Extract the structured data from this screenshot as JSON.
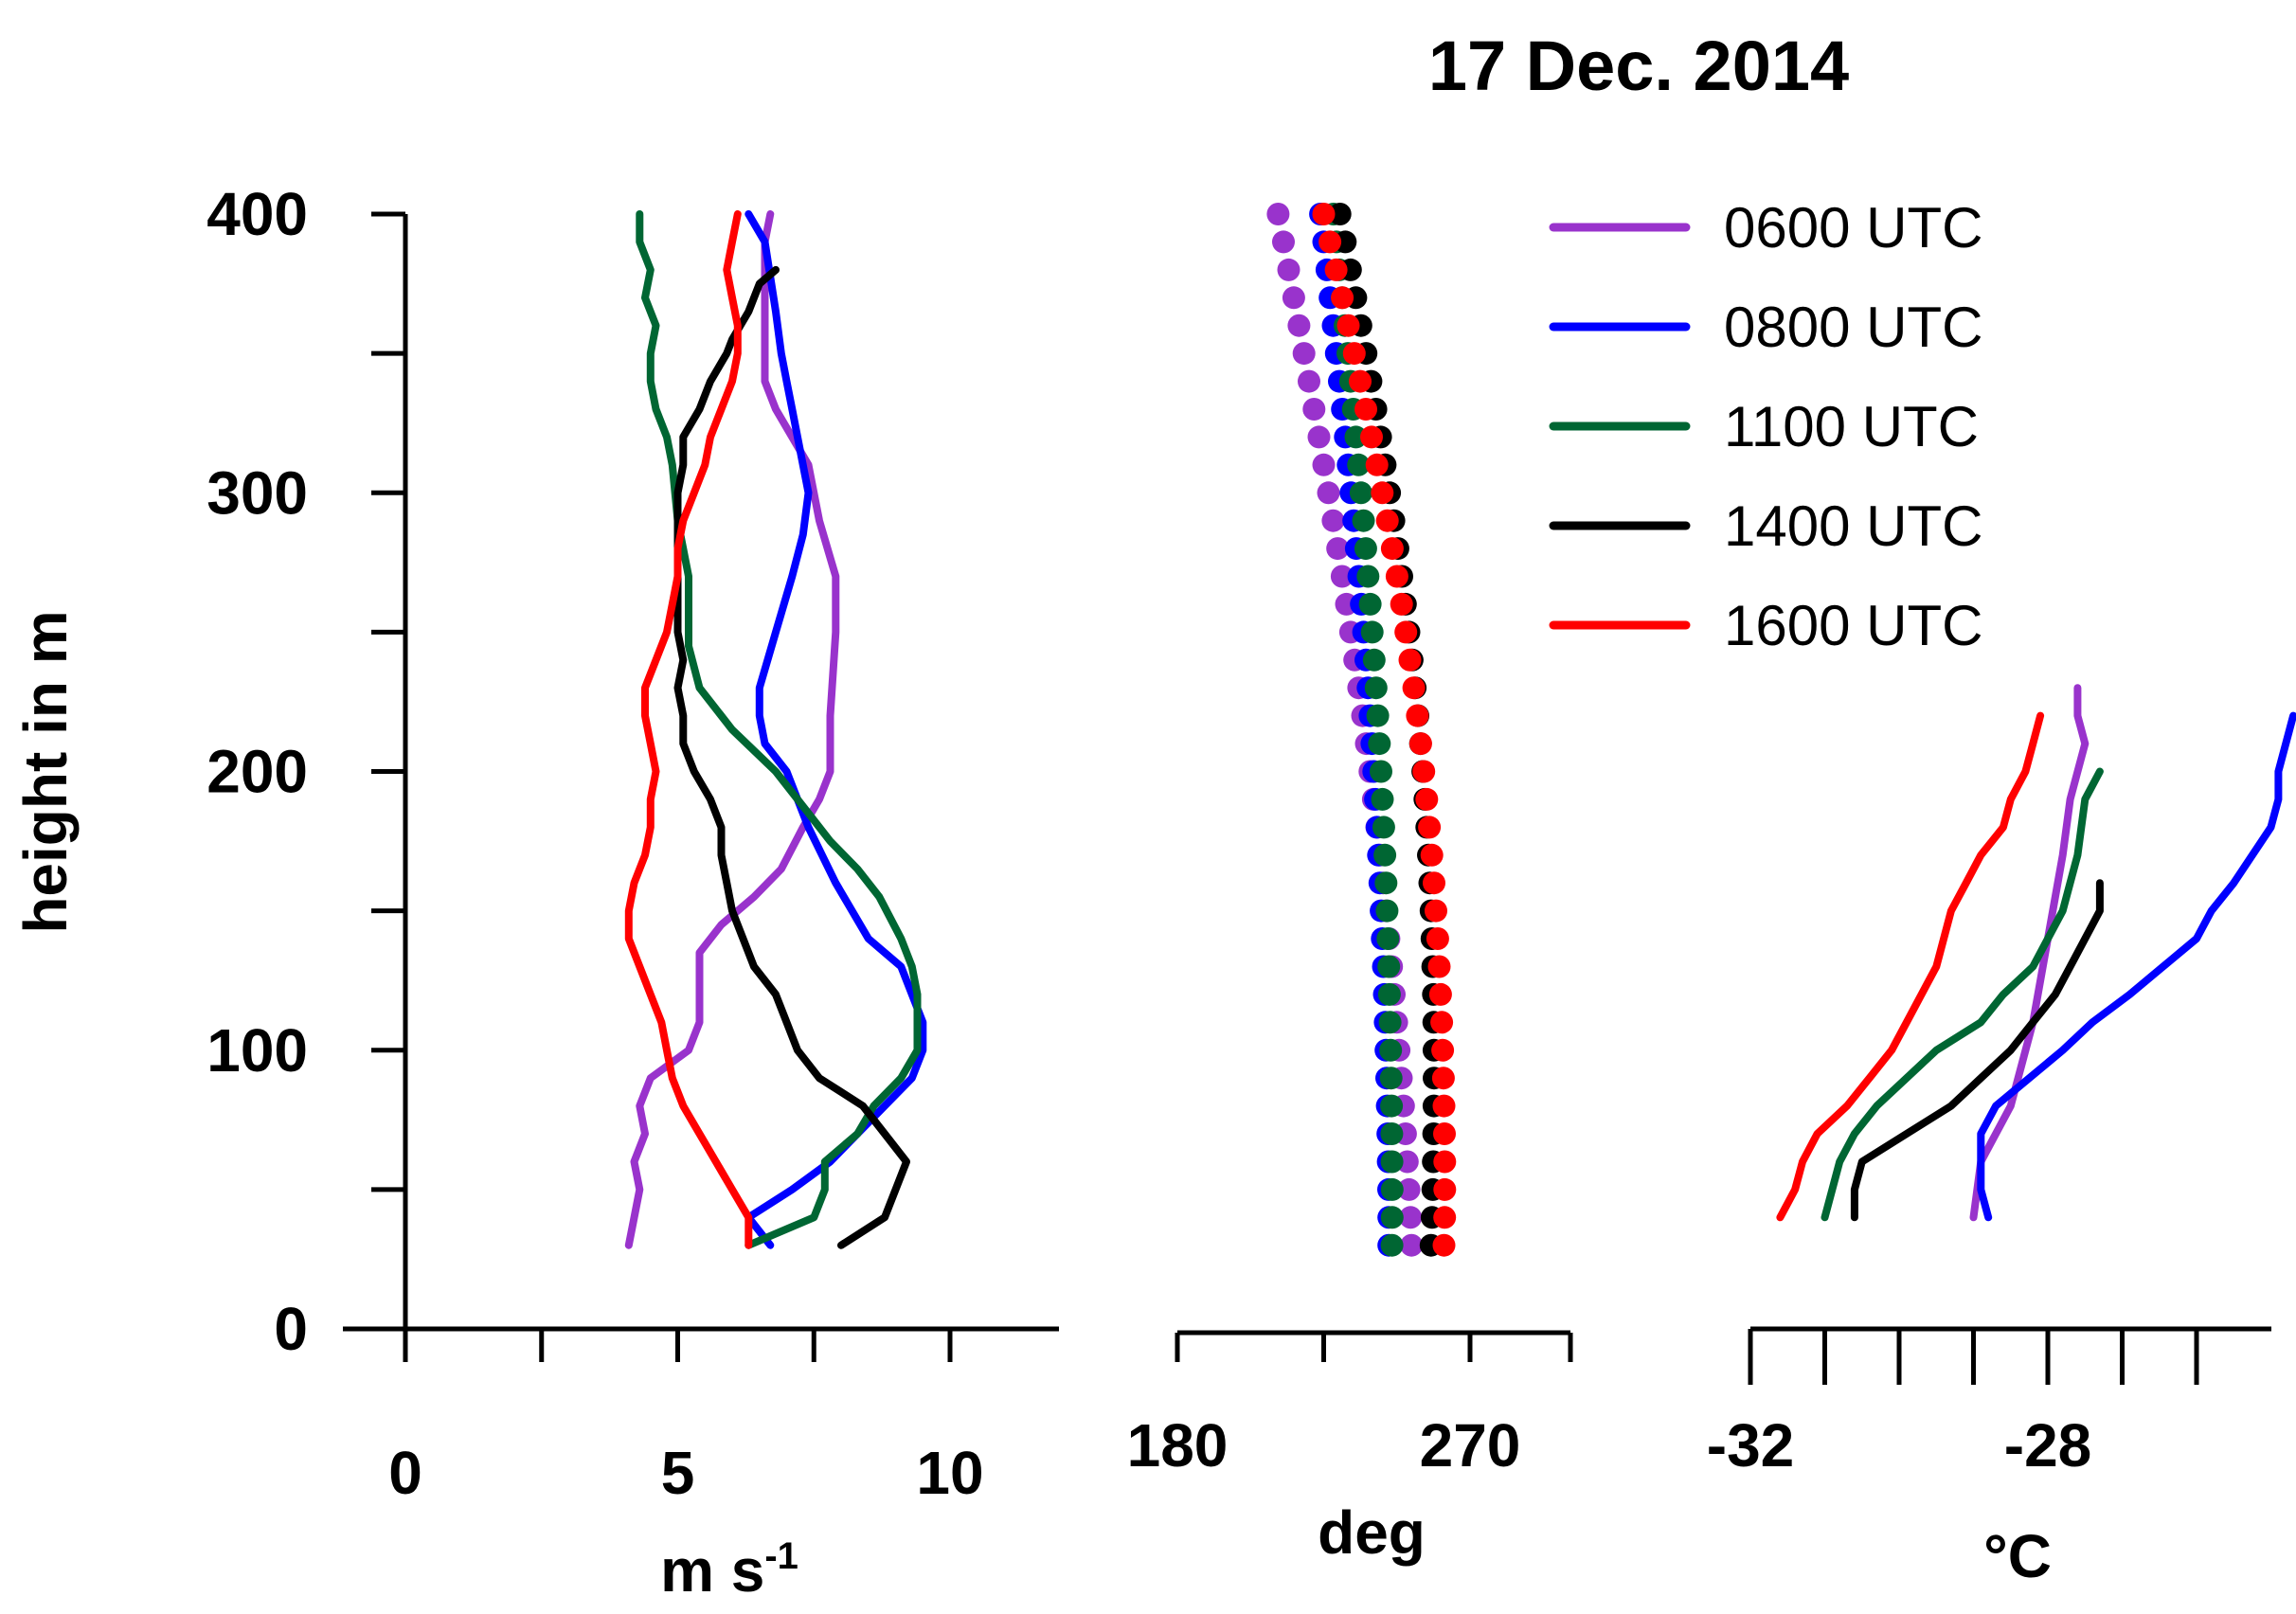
{
  "title": "17 Dec. 2014",
  "y_axis": {
    "label": "height in m",
    "range": [
      0,
      400
    ],
    "ticks": [
      0,
      50,
      100,
      150,
      200,
      250,
      300,
      350,
      400
    ],
    "tick_labels": [
      "0",
      "100",
      "200",
      "300",
      "400"
    ]
  },
  "legend": {
    "placement": "top-right",
    "entries": [
      {
        "name": "0600 UTC",
        "color": "#9933cc"
      },
      {
        "name": "0800 UTC",
        "color": "#0000ff"
      },
      {
        "name": "1100 UTC",
        "color": "#006633"
      },
      {
        "name": "1400 UTC",
        "color": "#000000"
      },
      {
        "name": "1600 UTC",
        "color": "#ff0000"
      }
    ]
  },
  "chart_data": [
    {
      "type": "line",
      "name": "wind speed",
      "xlabel_main": "m s",
      "xlabel_sup": "-1",
      "ylabel": "height in m",
      "xlim": [
        0,
        12
      ],
      "ylim": [
        0,
        400
      ],
      "x_ticks": [
        0,
        2.5,
        5,
        7.5,
        10
      ],
      "x_tick_labels": [
        "0",
        "5",
        "10"
      ],
      "series": [
        {
          "name": "0600 UTC",
          "color": "#9933cc",
          "points": [
            [
              4.1,
              30
            ],
            [
              4.3,
              50
            ],
            [
              4.2,
              60
            ],
            [
              4.4,
              70
            ],
            [
              4.3,
              80
            ],
            [
              4.5,
              90
            ],
            [
              5.2,
              100
            ],
            [
              5.4,
              110
            ],
            [
              5.4,
              120
            ],
            [
              5.4,
              135
            ],
            [
              5.8,
              145
            ],
            [
              6.4,
              155
            ],
            [
              6.9,
              165
            ],
            [
              7.3,
              180
            ],
            [
              7.6,
              190
            ],
            [
              7.8,
              200
            ],
            [
              7.8,
              220
            ],
            [
              7.9,
              250
            ],
            [
              7.9,
              270
            ],
            [
              7.6,
              290
            ],
            [
              7.4,
              310
            ],
            [
              6.8,
              330
            ],
            [
              6.6,
              340
            ],
            [
              6.6,
              370
            ],
            [
              6.6,
              390
            ],
            [
              6.7,
              400
            ]
          ]
        },
        {
          "name": "0800 UTC",
          "color": "#0000ff",
          "points": [
            [
              6.7,
              30
            ],
            [
              6.3,
              40
            ],
            [
              7.1,
              50
            ],
            [
              7.8,
              60
            ],
            [
              8.3,
              70
            ],
            [
              8.8,
              80
            ],
            [
              9.3,
              90
            ],
            [
              9.5,
              100
            ],
            [
              9.5,
              110
            ],
            [
              9.1,
              130
            ],
            [
              8.5,
              140
            ],
            [
              7.9,
              160
            ],
            [
              7.4,
              180
            ],
            [
              7.0,
              200
            ],
            [
              6.6,
              210
            ],
            [
              6.5,
              220
            ],
            [
              6.5,
              230
            ],
            [
              6.8,
              250
            ],
            [
              7.1,
              270
            ],
            [
              7.3,
              285
            ],
            [
              7.4,
              300
            ],
            [
              7.2,
              320
            ],
            [
              7.1,
              330
            ],
            [
              7.0,
              340
            ],
            [
              6.9,
              350
            ],
            [
              6.8,
              365
            ],
            [
              6.6,
              390
            ],
            [
              6.3,
              400
            ]
          ]
        },
        {
          "name": "1100 UTC",
          "color": "#006633",
          "points": [
            [
              6.3,
              30
            ],
            [
              7.5,
              40
            ],
            [
              7.7,
              50
            ],
            [
              7.7,
              60
            ],
            [
              8.3,
              70
            ],
            [
              8.6,
              80
            ],
            [
              9.1,
              90
            ],
            [
              9.4,
              100
            ],
            [
              9.4,
              120
            ],
            [
              9.3,
              130
            ],
            [
              9.1,
              140
            ],
            [
              8.7,
              155
            ],
            [
              8.3,
              165
            ],
            [
              7.8,
              175
            ],
            [
              7.4,
              185
            ],
            [
              6.8,
              200
            ],
            [
              6.0,
              215
            ],
            [
              5.4,
              230
            ],
            [
              5.2,
              245
            ],
            [
              5.2,
              270
            ],
            [
              5.0,
              290
            ],
            [
              4.9,
              310
            ],
            [
              4.8,
              320
            ],
            [
              4.6,
              330
            ],
            [
              4.5,
              340
            ],
            [
              4.5,
              350
            ],
            [
              4.6,
              360
            ],
            [
              4.4,
              370
            ],
            [
              4.5,
              380
            ],
            [
              4.3,
              390
            ],
            [
              4.3,
              400
            ]
          ]
        },
        {
          "name": "1400 UTC",
          "color": "#000000",
          "points": [
            [
              8.0,
              30
            ],
            [
              8.8,
              40
            ],
            [
              9.0,
              50
            ],
            [
              9.2,
              60
            ],
            [
              8.8,
              70
            ],
            [
              8.4,
              80
            ],
            [
              7.6,
              90
            ],
            [
              7.2,
              100
            ],
            [
              7.0,
              110
            ],
            [
              6.8,
              120
            ],
            [
              6.4,
              130
            ],
            [
              6.2,
              140
            ],
            [
              6.0,
              150
            ],
            [
              5.9,
              160
            ],
            [
              5.8,
              170
            ],
            [
              5.8,
              180
            ],
            [
              5.6,
              190
            ],
            [
              5.3,
              200
            ],
            [
              5.1,
              210
            ],
            [
              5.1,
              220
            ],
            [
              5.0,
              230
            ],
            [
              5.1,
              240
            ],
            [
              5.0,
              250
            ],
            [
              5.0,
              270
            ],
            [
              5.0,
              290
            ],
            [
              5.0,
              300
            ],
            [
              5.1,
              310
            ],
            [
              5.1,
              320
            ],
            [
              5.4,
              330
            ],
            [
              5.6,
              340
            ],
            [
              5.9,
              350
            ],
            [
              6.0,
              355
            ],
            [
              6.3,
              365
            ],
            [
              6.5,
              375
            ],
            [
              6.8,
              380
            ]
          ]
        },
        {
          "name": "1600 UTC",
          "color": "#ff0000",
          "points": [
            [
              6.3,
              30
            ],
            [
              6.3,
              40
            ],
            [
              6.0,
              50
            ],
            [
              5.7,
              60
            ],
            [
              5.4,
              70
            ],
            [
              5.1,
              80
            ],
            [
              4.9,
              90
            ],
            [
              4.8,
              100
            ],
            [
              4.7,
              110
            ],
            [
              4.5,
              120
            ],
            [
              4.3,
              130
            ],
            [
              4.1,
              140
            ],
            [
              4.1,
              150
            ],
            [
              4.2,
              160
            ],
            [
              4.4,
              170
            ],
            [
              4.5,
              180
            ],
            [
              4.5,
              190
            ],
            [
              4.6,
              200
            ],
            [
              4.5,
              210
            ],
            [
              4.4,
              220
            ],
            [
              4.4,
              230
            ],
            [
              4.6,
              240
            ],
            [
              4.8,
              250
            ],
            [
              4.9,
              260
            ],
            [
              5.0,
              270
            ],
            [
              5.0,
              280
            ],
            [
              5.1,
              290
            ],
            [
              5.3,
              300
            ],
            [
              5.5,
              310
            ],
            [
              5.6,
              320
            ],
            [
              5.8,
              330
            ],
            [
              6.0,
              340
            ],
            [
              6.1,
              350
            ],
            [
              6.1,
              360
            ],
            [
              6.0,
              370
            ],
            [
              5.9,
              380
            ],
            [
              6.0,
              390
            ],
            [
              6.1,
              400
            ]
          ]
        }
      ]
    },
    {
      "type": "scatter",
      "name": "wind direction",
      "xlabel": "deg",
      "xlim": [
        180,
        300
      ],
      "ylim": [
        0,
        400
      ],
      "x_ticks": [
        180,
        225,
        270
      ],
      "x_tick_labels": [
        "180",
        "270"
      ],
      "series": [
        {
          "name": "0600 UTC",
          "color": "#9933cc",
          "x_start": 211,
          "x_end": 252
        },
        {
          "name": "0800 UTC",
          "color": "#0000ff",
          "x_start": 224,
          "x_end": 245
        },
        {
          "name": "1100 UTC",
          "color": "#006633",
          "x_start": 228,
          "x_end": 246
        },
        {
          "name": "1400 UTC",
          "color": "#000000",
          "x_start": 230,
          "x_end": 258
        },
        {
          "name": "1600 UTC",
          "color": "#ff0000",
          "x_start": 225,
          "x_end": 262
        }
      ]
    },
    {
      "type": "line",
      "name": "temperature",
      "xlabel": "°C",
      "xlim": [
        -32,
        -25
      ],
      "ylim": [
        0,
        400
      ],
      "x_ticks": [
        -32,
        -31,
        -30,
        -29,
        -28,
        -27,
        -26
      ],
      "x_tick_labels": [
        "-32",
        "-28"
      ],
      "series": [
        {
          "name": "0600 UTC",
          "color": "#9933cc",
          "points": [
            [
              -29.0,
              40
            ],
            [
              -28.9,
              60
            ],
            [
              -28.5,
              80
            ],
            [
              -28.2,
              110
            ],
            [
              -28.0,
              140
            ],
            [
              -27.8,
              170
            ],
            [
              -27.7,
              190
            ],
            [
              -27.5,
              210
            ],
            [
              -27.6,
              220
            ],
            [
              -27.6,
              230
            ]
          ]
        },
        {
          "name": "0800 UTC",
          "color": "#0000ff",
          "points": [
            [
              -28.8,
              40
            ],
            [
              -28.9,
              50
            ],
            [
              -28.9,
              70
            ],
            [
              -28.7,
              80
            ],
            [
              -27.8,
              100
            ],
            [
              -27.4,
              110
            ],
            [
              -26.9,
              120
            ],
            [
              -26.0,
              140
            ],
            [
              -25.8,
              150
            ],
            [
              -25.5,
              160
            ],
            [
              -25.0,
              180
            ],
            [
              -24.9,
              190
            ],
            [
              -24.9,
              200
            ],
            [
              -24.7,
              220
            ]
          ]
        },
        {
          "name": "1100 UTC",
          "color": "#006633",
          "points": [
            [
              -31.0,
              40
            ],
            [
              -30.8,
              60
            ],
            [
              -30.6,
              70
            ],
            [
              -30.3,
              80
            ],
            [
              -29.5,
              100
            ],
            [
              -28.9,
              110
            ],
            [
              -28.6,
              120
            ],
            [
              -28.2,
              130
            ],
            [
              -27.8,
              150
            ],
            [
              -27.6,
              170
            ],
            [
              -27.5,
              190
            ],
            [
              -27.3,
              200
            ]
          ]
        },
        {
          "name": "1400 UTC",
          "color": "#000000",
          "points": [
            [
              -30.6,
              40
            ],
            [
              -30.6,
              50
            ],
            [
              -30.5,
              60
            ],
            [
              -29.9,
              70
            ],
            [
              -29.3,
              80
            ],
            [
              -28.9,
              90
            ],
            [
              -28.5,
              100
            ],
            [
              -28.2,
              110
            ],
            [
              -27.9,
              120
            ],
            [
              -27.7,
              130
            ],
            [
              -27.5,
              140
            ],
            [
              -27.3,
              150
            ],
            [
              -27.3,
              160
            ]
          ]
        },
        {
          "name": "1600 UTC",
          "color": "#ff0000",
          "points": [
            [
              -31.6,
              40
            ],
            [
              -31.4,
              50
            ],
            [
              -31.3,
              60
            ],
            [
              -31.1,
              70
            ],
            [
              -30.7,
              80
            ],
            [
              -30.4,
              90
            ],
            [
              -30.1,
              100
            ],
            [
              -29.9,
              110
            ],
            [
              -29.7,
              120
            ],
            [
              -29.5,
              130
            ],
            [
              -29.3,
              150
            ],
            [
              -29.1,
              160
            ],
            [
              -28.9,
              170
            ],
            [
              -28.6,
              180
            ],
            [
              -28.5,
              190
            ],
            [
              -28.3,
              200
            ],
            [
              -28.2,
              210
            ],
            [
              -28.1,
              220
            ]
          ]
        }
      ]
    }
  ]
}
